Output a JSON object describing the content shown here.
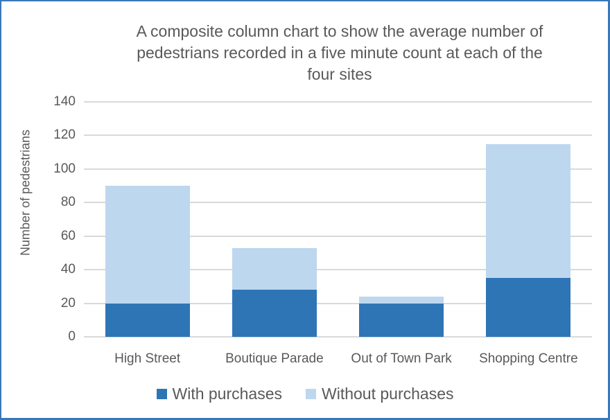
{
  "chart_data": {
    "type": "bar",
    "stacked": true,
    "title": "A composite column chart to show the average number of pedestrians recorded in a five minute count at each of the four sites",
    "title_lines": [
      "A composite column chart to show the average number of",
      "pedestrians recorded in a five minute count at each of the",
      "four sites"
    ],
    "xlabel": "",
    "ylabel": "Number of pedestrians",
    "ylim": [
      0,
      140
    ],
    "yticks": [
      0,
      20,
      40,
      60,
      80,
      100,
      120,
      140
    ],
    "grid": true,
    "legend_position": "bottom",
    "categories": [
      "High Street",
      "Boutique Parade",
      "Out of Town Park",
      "Shopping Centre"
    ],
    "series": [
      {
        "name": "With purchases",
        "color": "#2e75b6",
        "values": [
          20,
          28,
          20,
          35
        ]
      },
      {
        "name": "Without purchases",
        "color": "#bdd7ee",
        "values": [
          70,
          25,
          4,
          80
        ]
      }
    ],
    "totals": [
      90,
      53,
      24,
      115
    ]
  },
  "colors": {
    "border": "#3a77b8",
    "gridline": "#d9d9d9",
    "text": "#595959"
  }
}
